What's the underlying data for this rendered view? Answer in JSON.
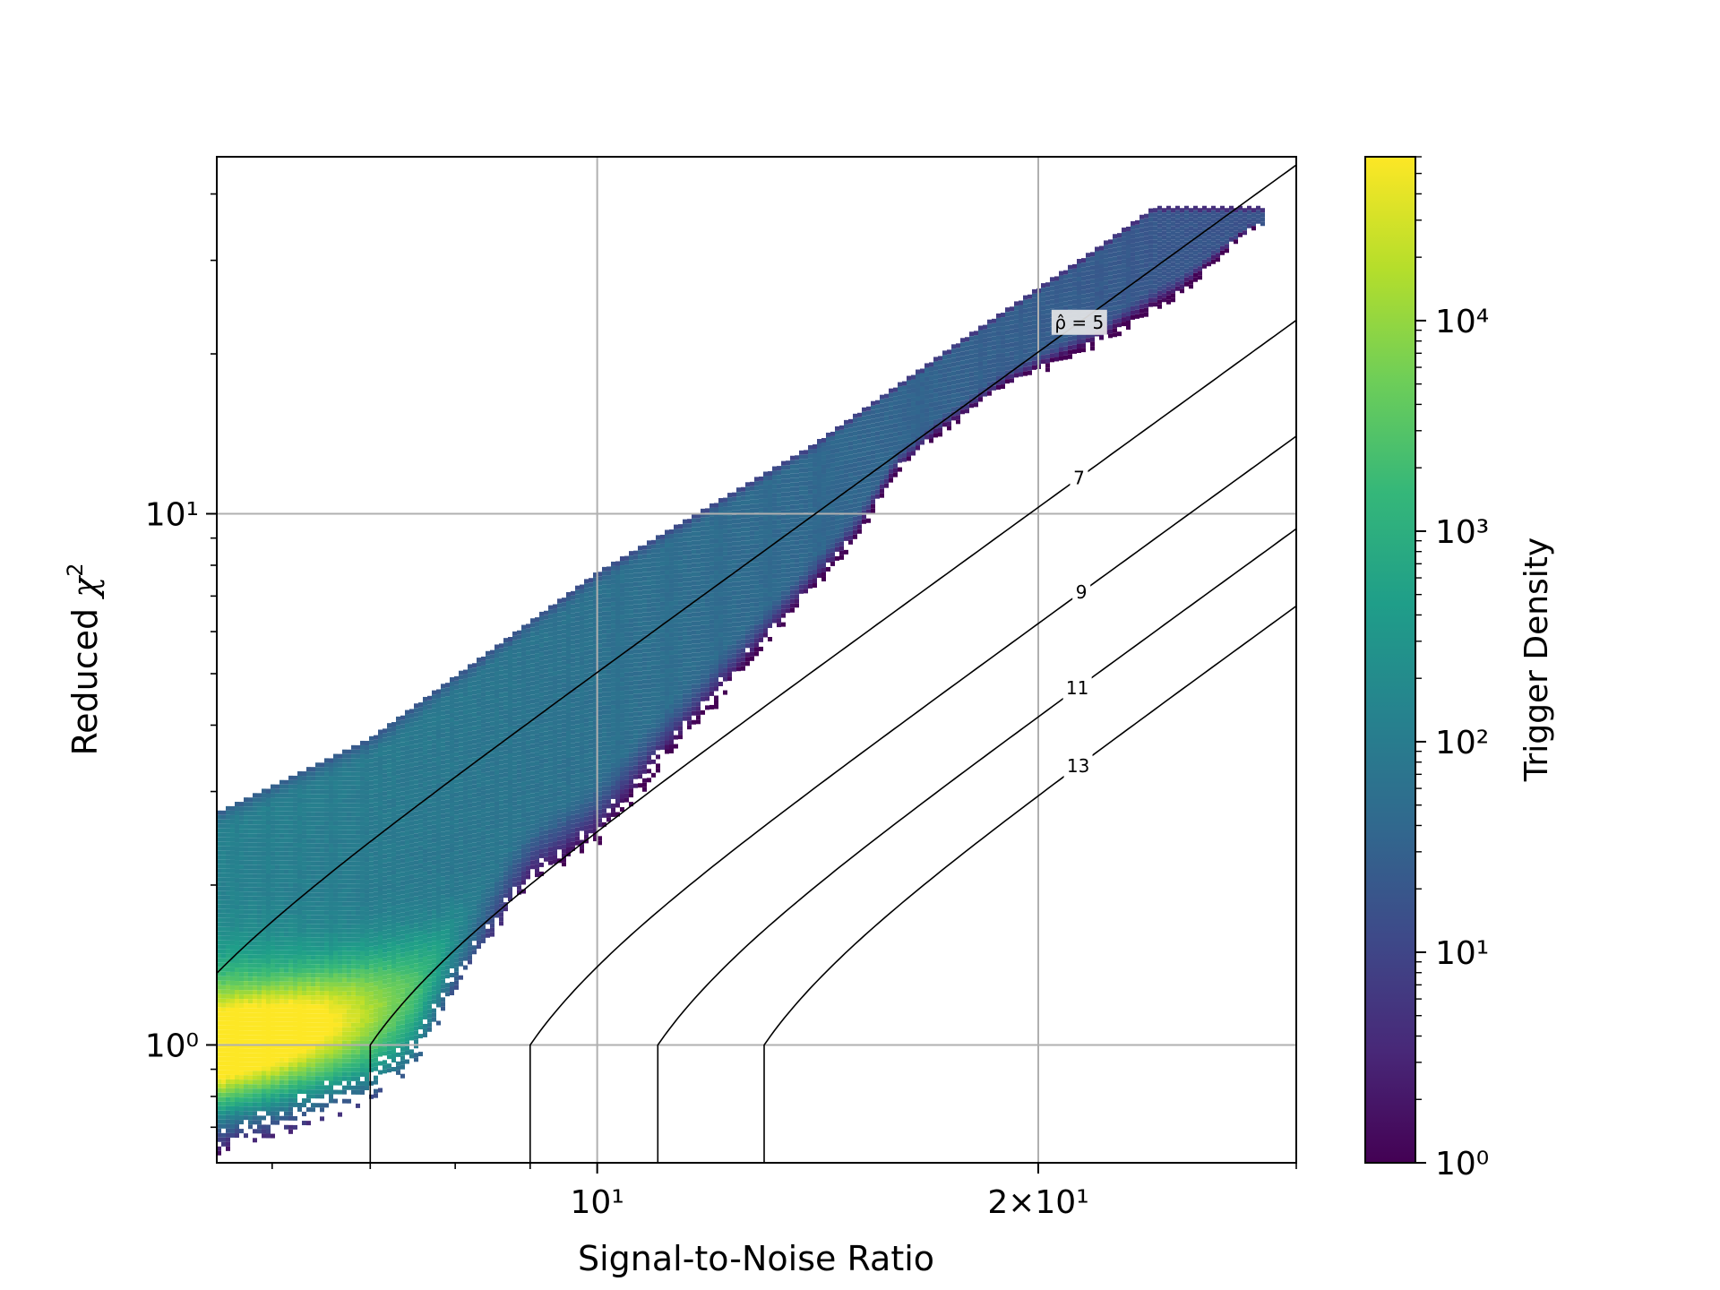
{
  "chart_data": {
    "type": "heatmap",
    "subtype": "hexbin-density",
    "title": "",
    "xlabel": "Signal-to-Noise Ratio",
    "ylabel": "Reduced χ²",
    "xscale": "log",
    "yscale": "log",
    "xlim": [
      5.5,
      30
    ],
    "ylim": [
      0.6,
      47
    ],
    "x_ticks": [
      {
        "value": 10,
        "label": "10¹"
      },
      {
        "value": 20,
        "label": "2×10¹"
      }
    ],
    "x_minor_ticks": [
      6,
      7,
      8,
      9,
      30
    ],
    "y_ticks": [
      {
        "value": 1,
        "label": "10⁰"
      },
      {
        "value": 10,
        "label": "10¹"
      }
    ],
    "grid": true,
    "colorbar": {
      "label": "Trigger Density",
      "scale": "log",
      "range": [
        1,
        60000
      ],
      "ticks": [
        {
          "value": 1,
          "label": "10⁰"
        },
        {
          "value": 10,
          "label": "10¹"
        },
        {
          "value": 100,
          "label": "10²"
        },
        {
          "value": 1000,
          "label": "10³"
        },
        {
          "value": 10000,
          "label": "10⁴"
        }
      ],
      "colormap": [
        "#440154",
        "#482878",
        "#3e4989",
        "#31688e",
        "#26828e",
        "#1f9e89",
        "#35b779",
        "#6ece58",
        "#b5de2b",
        "#fde725"
      ]
    },
    "density_region": {
      "upper_edge": [
        [
          5.5,
          2.75
        ],
        [
          7,
          3.8
        ],
        [
          10,
          7.8
        ],
        [
          14,
          13.5
        ],
        [
          18,
          22
        ],
        [
          22,
          32
        ],
        [
          24,
          38
        ]
      ],
      "lower_edge": [
        [
          5.5,
          0.63
        ],
        [
          6,
          0.67
        ],
        [
          7,
          0.79
        ],
        [
          7.5,
          0.9
        ],
        [
          8,
          1.25
        ],
        [
          9,
          2.0
        ],
        [
          10,
          2.4
        ],
        [
          11,
          3.3
        ],
        [
          13,
          5.6
        ],
        [
          15,
          8.9
        ],
        [
          16,
          12
        ],
        [
          17,
          14
        ],
        [
          19,
          17.5
        ],
        [
          22,
          21
        ],
        [
          25,
          26
        ],
        [
          27,
          32
        ],
        [
          28,
          35
        ]
      ],
      "peak": {
        "x": 5.6,
        "y": 1.02
      }
    },
    "contours": [
      {
        "label": "ρ̂ = 5",
        "rho": 5
      },
      {
        "label": "7",
        "rho": 7
      },
      {
        "label": "9",
        "rho": 9
      },
      {
        "label": "11",
        "rho": 11
      },
      {
        "label": "13",
        "rho": 13
      }
    ]
  }
}
